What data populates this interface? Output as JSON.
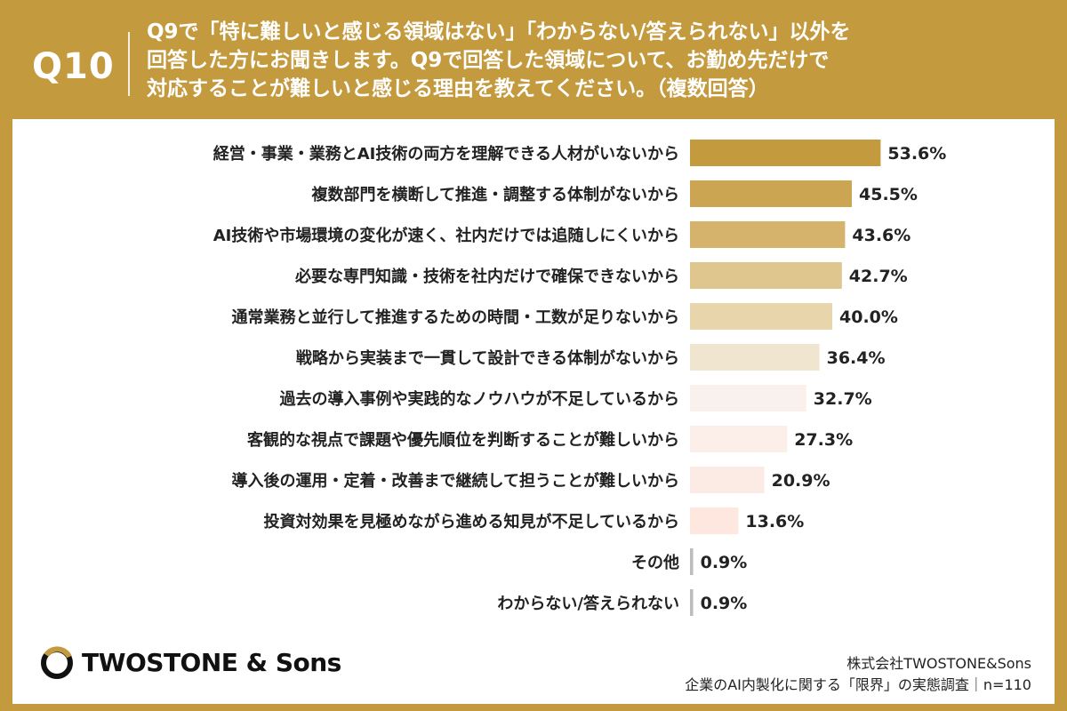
{
  "header": {
    "question_number": "Q10",
    "question_lines": [
      "Q9で「特に難しいと感じる領域はない」「わからない/答えられない」以外を",
      "回答した方にお聞きします。Q9で回答した領域について、お勤め先だけで",
      "対応することが難しいと感じる理由を教えてください。（複数回答）"
    ]
  },
  "chart_data": {
    "type": "bar",
    "orientation": "horizontal",
    "categories": [
      "経営・事業・業務とAI技術の両方を理解できる人材がいないから",
      "複数部門を横断して推進・調整する体制がないから",
      "AI技術や市場環境の変化が速く、社内だけでは追随しにくいから",
      "必要な専門知識・技術を社内だけで確保できないから",
      "通常業務と並行して推進するための時間・工数が足りないから",
      "戦略から実装まで一貫して設計できる体制がないから",
      "過去の導入事例や実践的なノウハウが不足しているから",
      "客観的な視点で課題や優先順位を判断することが難しいから",
      "導入後の運用・定着・改善まで継続して担うことが難しいから",
      "投資対効果を見極めながら進める知見が不足しているから",
      "その他",
      "わからない/答えられない"
    ],
    "values": [
      53.6,
      45.5,
      43.6,
      42.7,
      40.0,
      36.4,
      32.7,
      27.3,
      20.9,
      13.6,
      0.9,
      0.9
    ],
    "value_labels": [
      "53.6%",
      "45.5%",
      "43.6%",
      "42.7%",
      "40.0%",
      "36.4%",
      "32.7%",
      "27.3%",
      "20.9%",
      "13.6%",
      "0.9%",
      "0.9%"
    ],
    "unit": "%",
    "xlim": [
      0,
      100
    ],
    "grid": false,
    "bar_colors": [
      "#C49A3E",
      "#CCA553",
      "#D5B36C",
      "#DFC68E",
      "#E8D5AC",
      "#F0E5CE",
      "#FBF1EC",
      "#FCEFEA",
      "#FCEBE4",
      "#FDE7DE",
      "#BDBDBD",
      "#BDBDBD"
    ]
  },
  "footer": {
    "logo_text": "TWOSTONE & Sons",
    "company": "株式会社TWOSTONE&Sons",
    "survey": "企業のAI内製化に関する「限界」の実態調査｜n=110"
  },
  "colors": {
    "brand_gold": "#C49A3E",
    "panel": "#FFFFFF",
    "text": "#222222"
  }
}
